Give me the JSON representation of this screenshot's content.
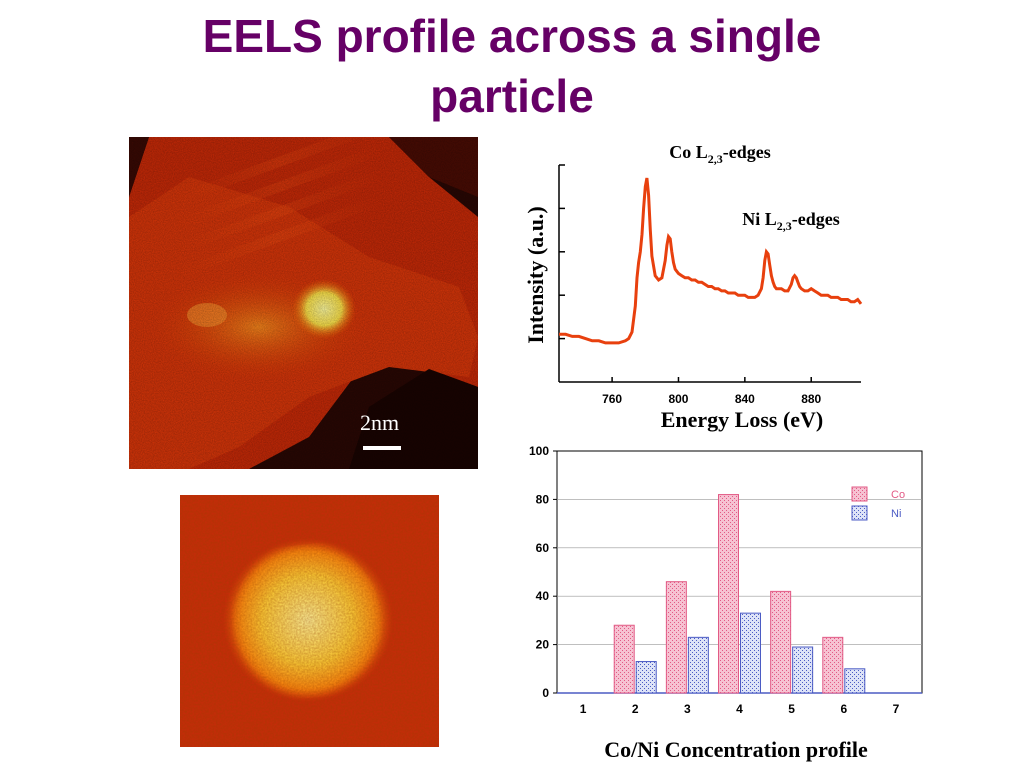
{
  "slide": {
    "title_line1": "EELS profile across a single",
    "title_line2": "particle"
  },
  "micrograph_top": {
    "scalebar_label": "2nm"
  },
  "chart_data": [
    {
      "type": "line",
      "xlabel": "Energy Loss (eV)",
      "ylabel": "Intensity (a.u.)",
      "xlim": [
        728,
        910
      ],
      "ylim": [
        0,
        10
      ],
      "xticks": [
        760,
        800,
        840,
        880
      ],
      "annotations": [
        {
          "label": "Co L",
          "sub": "2,3",
          "suffix": "-edges"
        },
        {
          "label": "Ni L",
          "sub": "2,3",
          "suffix": "-edges"
        }
      ],
      "series": [
        {
          "color": "#e8400e",
          "x": [
            728,
            732,
            736,
            740,
            744,
            748,
            752,
            756,
            760,
            764,
            768,
            770,
            772,
            774,
            775,
            776,
            777,
            778,
            779,
            780,
            781,
            782,
            783,
            784,
            786,
            788,
            790,
            792,
            793,
            794,
            795,
            796,
            797,
            798,
            799,
            800,
            802,
            804,
            806,
            808,
            810,
            812,
            814,
            816,
            818,
            820,
            822,
            824,
            826,
            828,
            830,
            832,
            834,
            836,
            838,
            840,
            842,
            844,
            846,
            848,
            850,
            851,
            852,
            853,
            854,
            855,
            856,
            857,
            858,
            859,
            860,
            862,
            864,
            866,
            868,
            869,
            870,
            871,
            872,
            873,
            874,
            876,
            878,
            880,
            882,
            884,
            886,
            888,
            890,
            892,
            894,
            896,
            898,
            900,
            902,
            904,
            906,
            908,
            910
          ],
          "y": [
            2.2,
            2.2,
            2.1,
            2.1,
            2.0,
            1.9,
            1.9,
            1.8,
            1.8,
            1.8,
            1.9,
            2.0,
            2.3,
            3.5,
            4.8,
            5.5,
            6.0,
            6.8,
            8.0,
            9.0,
            9.4,
            8.6,
            7.0,
            5.8,
            4.9,
            4.7,
            4.8,
            5.6,
            6.3,
            6.7,
            6.6,
            6.0,
            5.5,
            5.2,
            5.1,
            5.0,
            4.9,
            4.8,
            4.8,
            4.7,
            4.7,
            4.6,
            4.6,
            4.5,
            4.4,
            4.4,
            4.3,
            4.3,
            4.2,
            4.2,
            4.1,
            4.1,
            4.1,
            4.0,
            4.0,
            4.0,
            3.9,
            3.9,
            3.9,
            4.0,
            4.3,
            4.8,
            5.6,
            6.0,
            5.9,
            5.4,
            4.9,
            4.6,
            4.4,
            4.3,
            4.3,
            4.3,
            4.2,
            4.2,
            4.5,
            4.8,
            4.9,
            4.8,
            4.6,
            4.4,
            4.3,
            4.2,
            4.2,
            4.3,
            4.2,
            4.1,
            4.0,
            4.0,
            4.0,
            3.9,
            3.9,
            3.9,
            3.8,
            3.8,
            3.8,
            3.7,
            3.7,
            3.8,
            3.6
          ]
        }
      ]
    },
    {
      "type": "bar",
      "title": "Co/Ni Concentration profile",
      "categories": [
        "1",
        "2",
        "3",
        "4",
        "5",
        "6",
        "7"
      ],
      "ylim": [
        0,
        100
      ],
      "yticks": [
        0,
        20,
        40,
        60,
        80,
        100
      ],
      "legend_position": "top-right",
      "series": [
        {
          "name": "Co",
          "color": "#e25a85",
          "fill": "#f4b8ca",
          "values": [
            0,
            28,
            46,
            82,
            42,
            23,
            0
          ]
        },
        {
          "name": "Ni",
          "color": "#4b5bc4",
          "fill": "#c9d3f2",
          "values": [
            0,
            13,
            23,
            33,
            19,
            10,
            0
          ]
        }
      ]
    }
  ]
}
